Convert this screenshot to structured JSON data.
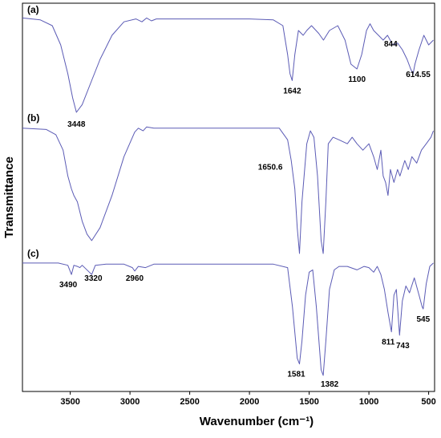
{
  "chart_data": {
    "type": "line",
    "xlabel": "Wavenumber (cm⁻¹)",
    "ylabel": "Transmittance",
    "xlim": [
      3900,
      450
    ],
    "x_reversed": true,
    "x_ticks": [
      3500,
      3000,
      2500,
      2000,
      1500,
      1000,
      500
    ],
    "y_ticks_shown": false,
    "grid": false,
    "line_color": "#5b5bb5",
    "series": [
      {
        "name": "(a)",
        "points": [
          [
            3900,
            0.02
          ],
          [
            3750,
            0.04
          ],
          [
            3650,
            0.1
          ],
          [
            3580,
            0.3
          ],
          [
            3520,
            0.6
          ],
          [
            3480,
            0.85
          ],
          [
            3448,
            1.0
          ],
          [
            3400,
            0.92
          ],
          [
            3330,
            0.7
          ],
          [
            3250,
            0.45
          ],
          [
            3150,
            0.2
          ],
          [
            3050,
            0.06
          ],
          [
            2950,
            0.03
          ],
          [
            2900,
            0.06
          ],
          [
            2860,
            0.02
          ],
          [
            2820,
            0.05
          ],
          [
            2780,
            0.03
          ],
          [
            2500,
            0.03
          ],
          [
            2000,
            0.03
          ],
          [
            1800,
            0.04
          ],
          [
            1720,
            0.1
          ],
          [
            1680,
            0.4
          ],
          [
            1660,
            0.6
          ],
          [
            1642,
            0.67
          ],
          [
            1620,
            0.4
          ],
          [
            1590,
            0.15
          ],
          [
            1550,
            0.2
          ],
          [
            1520,
            0.15
          ],
          [
            1480,
            0.1
          ],
          [
            1420,
            0.18
          ],
          [
            1380,
            0.25
          ],
          [
            1330,
            0.15
          ],
          [
            1260,
            0.1
          ],
          [
            1200,
            0.25
          ],
          [
            1150,
            0.5
          ],
          [
            1100,
            0.55
          ],
          [
            1060,
            0.4
          ],
          [
            1020,
            0.15
          ],
          [
            990,
            0.08
          ],
          [
            960,
            0.15
          ],
          [
            920,
            0.2
          ],
          [
            880,
            0.25
          ],
          [
            844,
            0.2
          ],
          [
            800,
            0.3
          ],
          [
            760,
            0.28
          ],
          [
            720,
            0.35
          ],
          [
            680,
            0.45
          ],
          [
            650,
            0.55
          ],
          [
            630,
            0.6
          ],
          [
            614.55,
            0.5
          ],
          [
            580,
            0.35
          ],
          [
            540,
            0.2
          ],
          [
            500,
            0.3
          ],
          [
            460,
            0.25
          ]
        ]
      },
      {
        "name": "(b)",
        "points": [
          [
            3900,
            0.03
          ],
          [
            3700,
            0.04
          ],
          [
            3620,
            0.08
          ],
          [
            3560,
            0.2
          ],
          [
            3520,
            0.4
          ],
          [
            3490,
            0.5
          ],
          [
            3470,
            0.55
          ],
          [
            3440,
            0.6
          ],
          [
            3400,
            0.75
          ],
          [
            3360,
            0.85
          ],
          [
            3320,
            0.9
          ],
          [
            3250,
            0.8
          ],
          [
            3150,
            0.55
          ],
          [
            3050,
            0.25
          ],
          [
            2960,
            0.06
          ],
          [
            2930,
            0.03
          ],
          [
            2890,
            0.05
          ],
          [
            2860,
            0.02
          ],
          [
            2800,
            0.03
          ],
          [
            2400,
            0.03
          ],
          [
            1900,
            0.03
          ],
          [
            1750,
            0.03
          ],
          [
            1680,
            0.12
          ],
          [
            1650,
            0.28
          ],
          [
            1620,
            0.5
          ],
          [
            1600,
            0.8
          ],
          [
            1581,
            1.0
          ],
          [
            1560,
            0.6
          ],
          [
            1520,
            0.15
          ],
          [
            1490,
            0.05
          ],
          [
            1460,
            0.1
          ],
          [
            1430,
            0.4
          ],
          [
            1400,
            0.9
          ],
          [
            1382,
            1.0
          ],
          [
            1360,
            0.6
          ],
          [
            1340,
            0.15
          ],
          [
            1300,
            0.1
          ],
          [
            1250,
            0.12
          ],
          [
            1180,
            0.15
          ],
          [
            1140,
            0.1
          ],
          [
            1100,
            0.15
          ],
          [
            1050,
            0.2
          ],
          [
            1000,
            0.15
          ],
          [
            960,
            0.25
          ],
          [
            930,
            0.35
          ],
          [
            900,
            0.2
          ],
          [
            880,
            0.4
          ],
          [
            860,
            0.45
          ],
          [
            840,
            0.55
          ],
          [
            820,
            0.35
          ],
          [
            790,
            0.45
          ],
          [
            760,
            0.35
          ],
          [
            740,
            0.4
          ],
          [
            700,
            0.28
          ],
          [
            670,
            0.35
          ],
          [
            640,
            0.25
          ],
          [
            600,
            0.3
          ],
          [
            560,
            0.2
          ],
          [
            520,
            0.15
          ],
          [
            480,
            0.1
          ],
          [
            460,
            0.05
          ]
        ]
      },
      {
        "name": "(c)",
        "points": [
          [
            3900,
            0.02
          ],
          [
            3600,
            0.02
          ],
          [
            3520,
            0.04
          ],
          [
            3490,
            0.12
          ],
          [
            3470,
            0.04
          ],
          [
            3440,
            0.05
          ],
          [
            3420,
            0.06
          ],
          [
            3400,
            0.04
          ],
          [
            3320,
            0.12
          ],
          [
            3290,
            0.04
          ],
          [
            3200,
            0.03
          ],
          [
            3050,
            0.03
          ],
          [
            2980,
            0.06
          ],
          [
            2960,
            0.09
          ],
          [
            2930,
            0.05
          ],
          [
            2870,
            0.06
          ],
          [
            2800,
            0.03
          ],
          [
            2200,
            0.03
          ],
          [
            1800,
            0.03
          ],
          [
            1680,
            0.06
          ],
          [
            1640,
            0.4
          ],
          [
            1600,
            0.85
          ],
          [
            1581,
            0.9
          ],
          [
            1560,
            0.7
          ],
          [
            1530,
            0.3
          ],
          [
            1500,
            0.1
          ],
          [
            1470,
            0.08
          ],
          [
            1440,
            0.4
          ],
          [
            1400,
            0.95
          ],
          [
            1382,
            1.0
          ],
          [
            1360,
            0.7
          ],
          [
            1330,
            0.25
          ],
          [
            1290,
            0.08
          ],
          [
            1250,
            0.05
          ],
          [
            1180,
            0.05
          ],
          [
            1100,
            0.08
          ],
          [
            1040,
            0.05
          ],
          [
            1000,
            0.06
          ],
          [
            960,
            0.1
          ],
          [
            930,
            0.05
          ],
          [
            900,
            0.12
          ],
          [
            870,
            0.25
          ],
          [
            840,
            0.45
          ],
          [
            811,
            0.62
          ],
          [
            790,
            0.3
          ],
          [
            770,
            0.25
          ],
          [
            743,
            0.65
          ],
          [
            720,
            0.35
          ],
          [
            690,
            0.22
          ],
          [
            660,
            0.28
          ],
          [
            620,
            0.15
          ],
          [
            580,
            0.3
          ],
          [
            555,
            0.4
          ],
          [
            545,
            0.42
          ],
          [
            520,
            0.2
          ],
          [
            490,
            0.05
          ],
          [
            460,
            0.02
          ]
        ]
      }
    ],
    "annotations": [
      {
        "series": "(a)",
        "text": "3448"
      },
      {
        "series": "(a)",
        "text": "1642"
      },
      {
        "series": "(a)",
        "text": "1100"
      },
      {
        "series": "(a)",
        "text": "844"
      },
      {
        "series": "(a)",
        "text": "614.55"
      },
      {
        "series": "(b)",
        "text": "1650.6"
      },
      {
        "series": "(c)",
        "text": "3490"
      },
      {
        "series": "(c)",
        "text": "3320"
      },
      {
        "series": "(c)",
        "text": "2960"
      },
      {
        "series": "(c)",
        "text": "1581"
      },
      {
        "series": "(c)",
        "text": "1382"
      },
      {
        "series": "(c)",
        "text": "811"
      },
      {
        "series": "(c)",
        "text": "743"
      },
      {
        "series": "(c)",
        "text": "545"
      }
    ]
  }
}
